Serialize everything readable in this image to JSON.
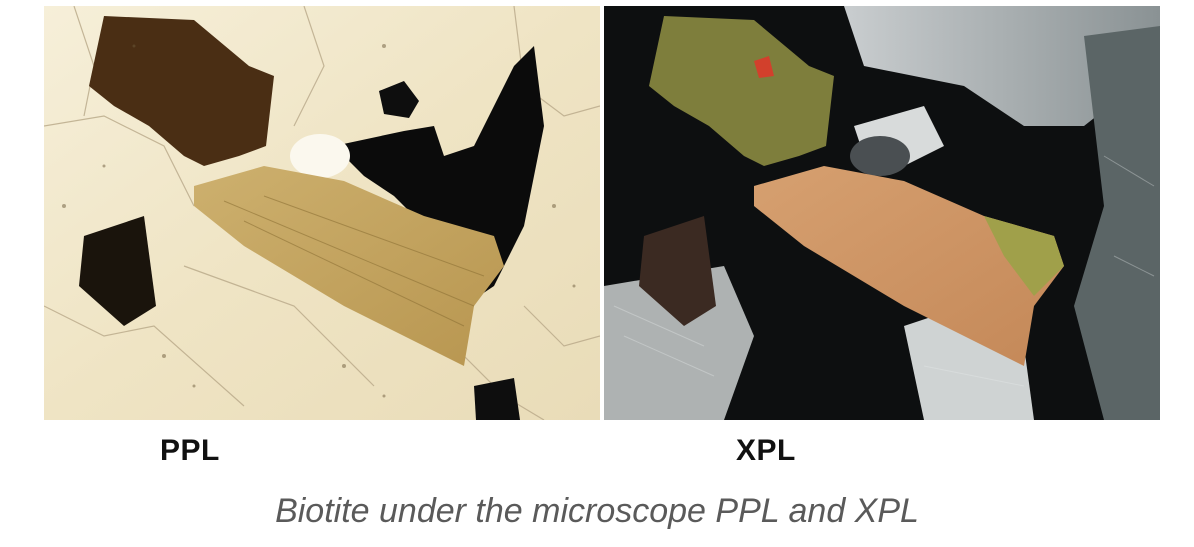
{
  "figure": {
    "panels": [
      {
        "label": "PPL",
        "mode": "plane-polarized light"
      },
      {
        "label": "XPL",
        "mode": "cross-polarized light"
      }
    ],
    "caption": "Biotite under the microscope PPL and XPL"
  },
  "colors": {
    "ppl_background": "#f4ecd4",
    "ppl_biotite_dark": "#4a2e14",
    "ppl_biotite_light": "#c8a866",
    "opaque": "#0b0b0b",
    "xpl_biotite_green": "#7e7e3c",
    "xpl_biotite_orange": "#cf9566",
    "caption_text": "#5a5a5a"
  }
}
